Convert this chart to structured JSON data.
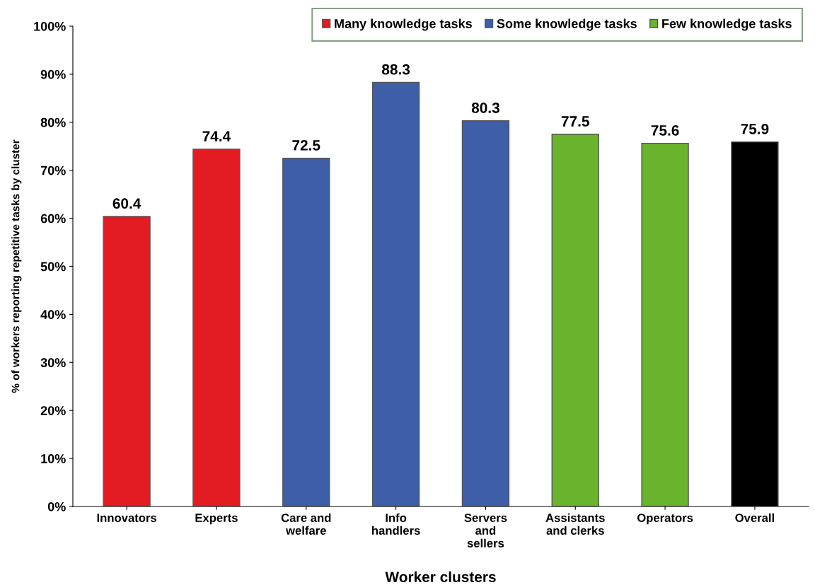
{
  "chart_data": {
    "type": "bar",
    "stacked": true,
    "xlabel": "Worker clusters",
    "ylabel": "% of workers reporting repetitive tasks by cluster",
    "categories": [
      "Innovators",
      "Experts",
      "Care and\nwelfare",
      "Info\nhandlers",
      "Servers\nand\nsellers",
      "Assistants\nand clerks",
      "Operators",
      "Overall"
    ],
    "series": [
      {
        "name": "Many knowledge tasks",
        "color": "#e31b23",
        "values": [
          60.4,
          74.4,
          null,
          null,
          null,
          null,
          null,
          null
        ]
      },
      {
        "name": "Some knowledge tasks",
        "color": "#3f5ea8",
        "values": [
          null,
          null,
          72.5,
          88.3,
          80.3,
          null,
          null,
          null
        ]
      },
      {
        "name": "Few knowledge tasks",
        "color": "#6ab42d",
        "values": [
          null,
          null,
          null,
          null,
          null,
          77.5,
          75.6,
          null
        ]
      },
      {
        "color": "#000000",
        "values": [
          null,
          null,
          null,
          null,
          null,
          null,
          null,
          75.9
        ]
      }
    ],
    "ylim": [
      0,
      100
    ],
    "yticks": [
      {
        "value": 0,
        "label": "0%"
      },
      {
        "value": 10,
        "label": "10%"
      },
      {
        "value": 20,
        "label": "20%"
      },
      {
        "value": 30,
        "label": "30%"
      },
      {
        "value": 40,
        "label": "40%"
      },
      {
        "value": 50,
        "label": "50%"
      },
      {
        "value": 60,
        "label": "60%"
      },
      {
        "value": 70,
        "label": "70%"
      },
      {
        "value": 80,
        "label": "80%"
      },
      {
        "value": 90,
        "label": "90%"
      },
      {
        "value": 100,
        "label": "100%"
      }
    ],
    "data_labels": true,
    "grid": false,
    "legend": "top right"
  }
}
